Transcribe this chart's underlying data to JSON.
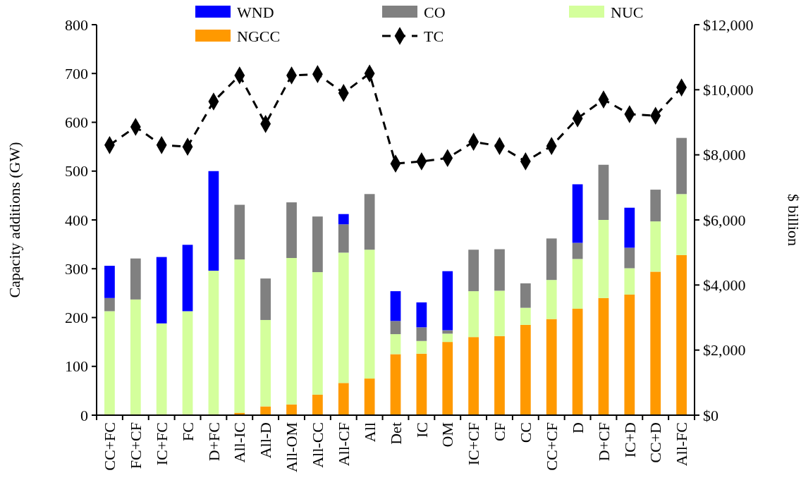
{
  "chart_data": {
    "type": "bar",
    "stacked": true,
    "ylabel": "Capacity additions (GW)",
    "y2label": "$ billion",
    "categories": [
      "CC+FC",
      "FC+CF",
      "IC+FC",
      "FC",
      "D+FC",
      "All-IC",
      "All-D",
      "All-OM",
      "All-CC",
      "All-CF",
      "All",
      "Det",
      "IC",
      "OM",
      "IC+CF",
      "CF",
      "CC",
      "CC+CF",
      "D",
      "D+CF",
      "IC+D",
      "CC+D",
      "All-FC"
    ],
    "series": [
      {
        "name": "NGCC",
        "color": "#ff9900",
        "values": [
          0,
          0,
          0,
          0,
          0,
          5,
          18,
          22,
          42,
          66,
          75,
          125,
          126,
          150,
          160,
          162,
          185,
          197,
          218,
          240,
          247,
          294,
          328
        ]
      },
      {
        "name": "NUC",
        "color": "#d4ff9c",
        "values": [
          213,
          237,
          188,
          213,
          296,
          314,
          177,
          300,
          251,
          267,
          264,
          41,
          26,
          17,
          94,
          93,
          35,
          80,
          102,
          160,
          54,
          103,
          125
        ]
      },
      {
        "name": "CO",
        "color": "#808080",
        "values": [
          27,
          84,
          0,
          0,
          0,
          112,
          85,
          114,
          114,
          58,
          114,
          27,
          28,
          7,
          85,
          85,
          50,
          85,
          33,
          113,
          42,
          65,
          115
        ]
      },
      {
        "name": "WND",
        "color": "#0000ff",
        "values": [
          66,
          0,
          136,
          136,
          204,
          0,
          0,
          0,
          0,
          21,
          0,
          61,
          51,
          121,
          0,
          0,
          0,
          0,
          120,
          0,
          82,
          0,
          0
        ]
      },
      {
        "name": "TC",
        "type": "line",
        "axis": "y2",
        "color": "#000000",
        "line_style": "dashed",
        "marker": "diamond",
        "values": [
          8300,
          8860,
          8300,
          8250,
          9640,
          10440,
          8950,
          10440,
          10480,
          9900,
          10500,
          7730,
          7800,
          7900,
          8400,
          8270,
          7800,
          8270,
          9120,
          9700,
          9250,
          9200,
          10070
        ]
      }
    ],
    "ylim": [
      0,
      800
    ],
    "yticks": [
      0,
      100,
      200,
      300,
      400,
      500,
      600,
      700,
      800
    ],
    "y2lim": [
      0,
      12000
    ],
    "y2ticks": [
      {
        "value": 0,
        "label": "$0"
      },
      {
        "value": 2000,
        "label": "$2,000"
      },
      {
        "value": 4000,
        "label": "$4,000"
      },
      {
        "value": 6000,
        "label": "$6,000"
      },
      {
        "value": 8000,
        "label": "$8,000"
      },
      {
        "value": 10000,
        "label": "$10,000"
      },
      {
        "value": 12000,
        "label": "$12,000"
      }
    ],
    "grid": false,
    "legend": "top"
  }
}
